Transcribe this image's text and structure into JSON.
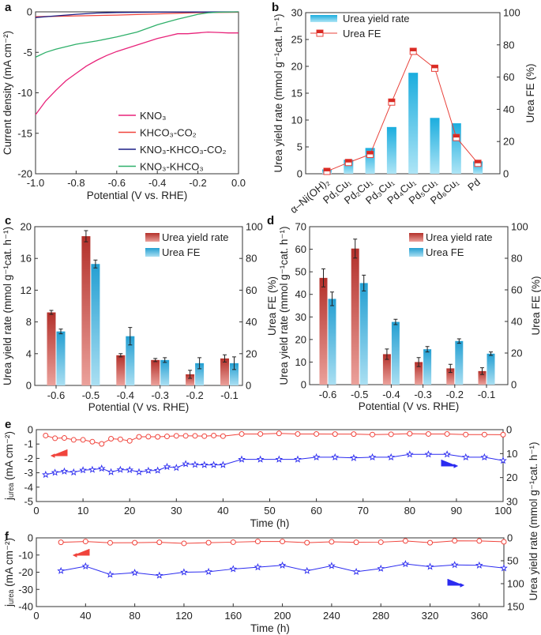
{
  "panel_labels": [
    "a",
    "b",
    "c",
    "d",
    "e",
    "f"
  ],
  "chart_data": [
    {
      "id": "a",
      "type": "line",
      "xlabel": "Potential (V vs. RHE)",
      "ylabel": "Current density (mA cm⁻²)",
      "xlim": [
        -1.0,
        0.0
      ],
      "ylim": [
        -20,
        0
      ],
      "xticks": [
        "-1.0",
        "-0.8",
        "-0.6",
        "-0.4",
        "-0.2",
        "0.0"
      ],
      "yticks": [
        "0",
        "-5",
        "-10",
        "-15",
        "-20"
      ],
      "legend_position": "bottom-right",
      "series": [
        {
          "name": "KNO₃",
          "color": "#e8237a",
          "x": [
            -1.0,
            -0.95,
            -0.9,
            -0.85,
            -0.8,
            -0.75,
            -0.7,
            -0.65,
            -0.6,
            -0.55,
            -0.5,
            -0.45,
            -0.4,
            -0.35,
            -0.3,
            -0.25,
            -0.2,
            -0.15,
            -0.1,
            -0.05,
            0.0
          ],
          "y": [
            -12.7,
            -11.0,
            -9.7,
            -8.5,
            -7.6,
            -6.7,
            -6.0,
            -5.4,
            -4.9,
            -4.5,
            -4.1,
            -3.7,
            -3.3,
            -3.0,
            -2.7,
            -2.7,
            -2.6,
            -2.5,
            -2.55,
            -2.6,
            -2.6
          ]
        },
        {
          "name": "KHCO₃-CO₂",
          "color": "#f0443c",
          "x": [
            -1.0,
            -0.8,
            -0.6,
            -0.4,
            -0.2,
            0.0
          ],
          "y": [
            -0.6,
            -0.5,
            -0.4,
            -0.25,
            -0.1,
            -0.05
          ]
        },
        {
          "name": "KNO₃-KHCO₃-CO₂",
          "color": "#1c1f86",
          "x": [
            -1.0,
            -0.9,
            -0.8,
            -0.7,
            -0.6,
            -0.4,
            -0.2,
            0.0
          ],
          "y": [
            -0.7,
            -0.5,
            -0.3,
            -0.15,
            -0.08,
            -0.04,
            -0.02,
            0.0
          ]
        },
        {
          "name": "KNO₃-KHCO₃",
          "color": "#2fb06a",
          "x": [
            -1.0,
            -0.95,
            -0.9,
            -0.85,
            -0.8,
            -0.7,
            -0.6,
            -0.5,
            -0.45,
            -0.4,
            -0.35,
            -0.3,
            -0.25,
            -0.2,
            -0.15,
            -0.1,
            0.0
          ],
          "y": [
            -5.6,
            -5.0,
            -4.6,
            -4.3,
            -4.0,
            -3.6,
            -3.1,
            -2.5,
            -2.05,
            -1.6,
            -1.25,
            -0.9,
            -0.6,
            -0.3,
            -0.12,
            -0.05,
            0.0
          ]
        }
      ]
    },
    {
      "id": "b",
      "type": "bar+line",
      "categories": [
        "α–Ni(OH)₂",
        "Pd₁Cu₁",
        "Pd₂Cu₁",
        "Pd₃Cu₁",
        "Pd₄Cu₁",
        "Pd₅Cu₁",
        "Pd₆Cu₁",
        "Pd"
      ],
      "ylabel": "Urea yield rate (mmol g⁻¹cat. h⁻¹)",
      "y2label": "Urea FE (%)",
      "ylim": [
        0,
        30
      ],
      "y2lim": [
        0,
        100
      ],
      "yticks": [
        "0",
        "5",
        "10",
        "15",
        "20",
        "25",
        "30"
      ],
      "y2ticks": [
        "0",
        "20",
        "40",
        "60",
        "80",
        "100"
      ],
      "legend_position": "top-left",
      "series": [
        {
          "name": "Urea yield rate",
          "axis": "left",
          "kind": "bar",
          "color": "#1fb0dc",
          "values": [
            0.8,
            2.6,
            4.8,
            8.7,
            18.8,
            10.4,
            9.4,
            2.3
          ]
        },
        {
          "name": "Urea FE",
          "axis": "right",
          "kind": "line",
          "color": "#e8413a",
          "values": [
            1.5,
            7,
            12,
            44.5,
            76,
            65.5,
            22.5,
            6.5
          ]
        }
      ]
    },
    {
      "id": "c",
      "type": "bar",
      "categories": [
        "-0.6",
        "-0.5",
        "-0.4",
        "-0.3",
        "-0.2",
        "-0.1"
      ],
      "xlabel": "Potential (V vs. RHE)",
      "ylabel": "Urea yield rate (mmol g⁻¹cat. h⁻¹)",
      "y2label": "Urea FE (%)",
      "ylim": [
        0,
        20
      ],
      "y2lim": [
        0,
        100
      ],
      "yticks": [
        "0",
        "4",
        "8",
        "12",
        "16",
        "20"
      ],
      "y2ticks": [
        "0",
        "20",
        "40",
        "60",
        "80",
        "100"
      ],
      "legend_position": "top-right",
      "series": [
        {
          "name": "Urea yield rate",
          "axis": "left",
          "color": "#b8322a",
          "values": [
            9.2,
            18.8,
            3.8,
            3.2,
            1.4,
            3.4
          ],
          "errors": [
            0.25,
            0.7,
            0.2,
            0.2,
            0.5,
            0.45
          ]
        },
        {
          "name": "Urea FE",
          "axis": "right",
          "color": "#2a9fd0",
          "values": [
            34,
            76.5,
            31,
            16,
            14,
            14
          ],
          "errors": [
            1.5,
            2.5,
            5.5,
            1.5,
            3.5,
            4
          ]
        }
      ]
    },
    {
      "id": "d",
      "type": "bar",
      "categories": [
        "-0.6",
        "-0.5",
        "-0.4",
        "-0.3",
        "-0.2",
        "-0.1"
      ],
      "xlabel": "Potential (V vs. RHE)",
      "ylabel": "Urea yield rate (mmol g⁻¹cat. h⁻¹)",
      "y2label": "Urea FE (%)",
      "ylim": [
        0,
        70
      ],
      "y2lim": [
        0,
        100
      ],
      "yticks": [
        "0",
        "10",
        "20",
        "30",
        "40",
        "50",
        "60",
        "70"
      ],
      "y2ticks": [
        "0",
        "20",
        "40",
        "60",
        "80",
        "100"
      ],
      "legend_position": "top-right",
      "series": [
        {
          "name": "Urea yield rate",
          "axis": "left",
          "color": "#b8322a",
          "values": [
            47.3,
            60.3,
            13.5,
            10,
            7.2,
            6
          ],
          "errors": [
            4,
            4.2,
            2.3,
            2,
            1.8,
            1.5
          ]
        },
        {
          "name": "Urea FE",
          "axis": "right",
          "color": "#2a9fd0",
          "values": [
            54.3,
            64.3,
            39.7,
            22.4,
            27.6,
            19.6
          ],
          "errors": [
            4.3,
            5,
            1.7,
            1.7,
            1.4,
            1.1
          ]
        }
      ]
    },
    {
      "id": "e",
      "type": "scatter-line",
      "xlabel": "Time (h)",
      "ylabel": "jᵤᵣₑₐ (mA cm⁻²)",
      "y2label": "Urea yield rate (mmol g⁻¹cat. h⁻¹)",
      "xlim": [
        0,
        100
      ],
      "ylim": [
        -5,
        0
      ],
      "y2lim": [
        30,
        0
      ],
      "y2_inverted": true,
      "xticks": [
        "0",
        "10",
        "20",
        "30",
        "40",
        "50",
        "60",
        "70",
        "80",
        "90",
        "100"
      ],
      "yticks": [
        "0",
        "-1",
        "-2",
        "-3",
        "-4",
        "-5"
      ],
      "y2ticks": [
        "0",
        "10",
        "20",
        "30"
      ],
      "x": [
        2,
        4,
        6,
        8,
        10,
        12,
        14,
        16,
        18,
        20,
        22,
        24,
        26,
        28,
        30,
        32,
        34,
        36,
        38,
        40,
        44,
        48,
        52,
        56,
        60,
        64,
        68,
        72,
        76,
        80,
        84,
        88,
        92,
        96,
        100
      ],
      "series": [
        {
          "axis": "left",
          "marker": "circle",
          "color": "#f0443c",
          "y": [
            -0.41,
            -0.6,
            -0.58,
            -0.71,
            -0.71,
            -0.84,
            -0.99,
            -0.63,
            -0.67,
            -0.78,
            -0.5,
            -0.49,
            -0.5,
            -0.47,
            -0.43,
            -0.43,
            -0.43,
            -0.45,
            -0.41,
            -0.45,
            -0.3,
            -0.3,
            -0.26,
            -0.3,
            -0.3,
            -0.31,
            -0.31,
            -0.34,
            -0.32,
            -0.28,
            -0.3,
            -0.3,
            -0.34,
            -0.34,
            -0.35
          ]
        },
        {
          "axis": "right",
          "marker": "star",
          "color": "#2b2bf0",
          "y": [
            18.8,
            17.9,
            17.4,
            17.8,
            16.9,
            16.7,
            16.2,
            17.7,
            16.7,
            16.8,
            17.7,
            17.1,
            17.0,
            15.5,
            15.9,
            14.3,
            14.6,
            14.7,
            14.7,
            14.7,
            12.4,
            12.4,
            12.4,
            12.4,
            11.5,
            11.5,
            11.8,
            11.5,
            11.5,
            10.3,
            10.3,
            10.3,
            11.5,
            11.5,
            12.9
          ]
        }
      ]
    },
    {
      "id": "f",
      "type": "scatter-line",
      "xlabel": "Time (h)",
      "ylabel": "jᵤᵣₑₐ (mA cm⁻²)",
      "xlim": [
        0,
        380
      ],
      "ylim": [
        -40,
        0
      ],
      "y2lim": [
        150,
        0
      ],
      "y2_inverted": true,
      "xticks": [
        "0",
        "40",
        "80",
        "120",
        "160",
        "200",
        "240",
        "280",
        "320",
        "360"
      ],
      "yticks": [
        "0",
        "-10",
        "-20",
        "-30",
        "-40"
      ],
      "y2ticks": [
        "0",
        "50",
        "100",
        "150"
      ],
      "x": [
        20,
        40,
        60,
        80,
        100,
        120,
        140,
        160,
        180,
        200,
        220,
        240,
        260,
        280,
        300,
        320,
        340,
        360,
        380
      ],
      "series": [
        {
          "axis": "left",
          "marker": "circle",
          "color": "#f0443c",
          "y": [
            -2.6,
            -2.1,
            -2.9,
            -2.8,
            -2.6,
            -3.2,
            -2.8,
            -2.5,
            -2.1,
            -2.1,
            -2.8,
            -2.3,
            -2.6,
            -2.5,
            -1.8,
            -2.8,
            -1.7,
            -1.8,
            -2.3
          ]
        },
        {
          "axis": "right",
          "marker": "star",
          "color": "#2b2bf0",
          "y": [
            72,
            62,
            80,
            76,
            82,
            75,
            74,
            68,
            64,
            60,
            72,
            61,
            74,
            67,
            57,
            63,
            59,
            60,
            66
          ]
        }
      ]
    }
  ]
}
